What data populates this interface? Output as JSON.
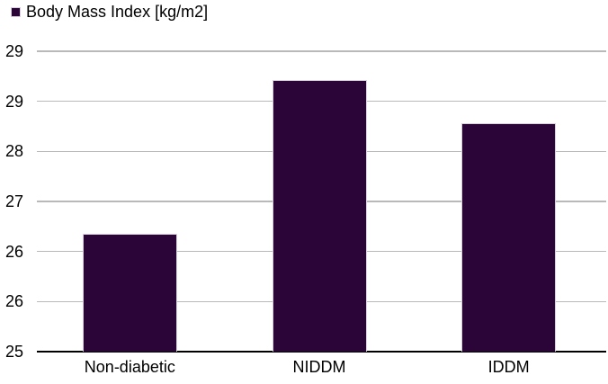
{
  "legend": {
    "label": "Body Mass Index [kg/m2]",
    "swatch_icon": "filled-square",
    "swatch_color": "#2b0438"
  },
  "chart_data": {
    "type": "bar",
    "title": "",
    "series_name": "Body Mass Index [kg/m2]",
    "categories": [
      "Non-diabetic",
      "NIDDM",
      "IDDM"
    ],
    "values": [
      26.65,
      28.8,
      28.2
    ],
    "xlabel": "",
    "ylabel": "",
    "ylim": [
      25,
      29.2
    ],
    "ytick_step": 0.7,
    "ytick_values": [
      29.2,
      28.5,
      27.8,
      27.1,
      26.4,
      25.7,
      25
    ],
    "ytick_labels_displayed_top_to_bottom": [
      "29",
      "29",
      "28",
      "27",
      "26",
      "26",
      "25"
    ],
    "grid": true,
    "legend_position": "top-left",
    "colors": {
      "bar_fill": "#2b0438",
      "bar_border": "#d8d0dc",
      "gridline": "#b9b9b9",
      "axis_line": "#000000",
      "text": "#000000"
    }
  }
}
